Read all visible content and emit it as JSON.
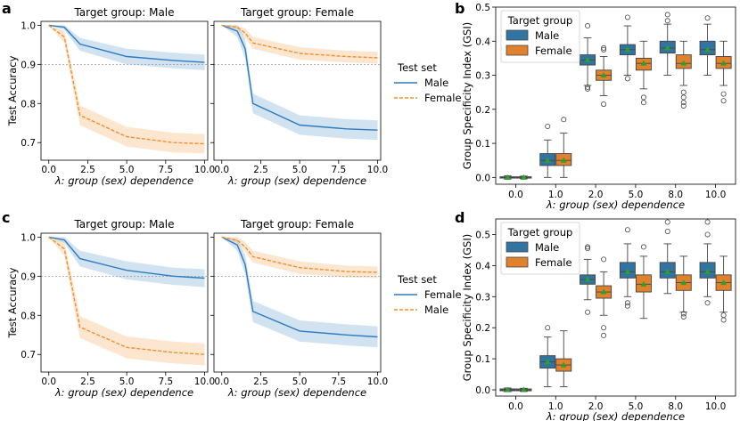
{
  "colors": {
    "male": "#2f7bbf",
    "female": "#f28e2b",
    "male_box": "#3274a1",
    "female_box": "#e1812c",
    "mean_marker": "#2ca02c",
    "grid": "#999999"
  },
  "panel_letters": [
    "a",
    "b",
    "c",
    "d"
  ],
  "chart_data": [
    {
      "id": "a-male",
      "type": "line",
      "panel": "a",
      "title": "Target group: Male",
      "ylabel": "Test Accuracy",
      "xlabel": "λ: group (sex) dependence",
      "xlim": [
        -0.5,
        10.2
      ],
      "ylim": [
        0.655,
        1.01
      ],
      "xticks": [
        0,
        2.5,
        5,
        7.5,
        10
      ],
      "xtick_labels": [
        "0.0",
        "2.5",
        "5.0",
        "7.5",
        "10.0"
      ],
      "yticks": [
        0.7,
        0.8,
        0.9,
        1.0
      ],
      "ytick_labels": [
        "0.7",
        "0.8",
        "0.9",
        "1.0"
      ],
      "hline": 0.9,
      "x": [
        0,
        1,
        2,
        5,
        8,
        10
      ],
      "series": [
        {
          "name": "Male",
          "style": "solid",
          "color": "male",
          "values": [
            1.0,
            0.995,
            0.952,
            0.92,
            0.91,
            0.905
          ],
          "lower": [
            1.0,
            0.988,
            0.935,
            0.9,
            0.89,
            0.885
          ],
          "upper": [
            1.0,
            1.0,
            0.968,
            0.94,
            0.93,
            0.925
          ]
        },
        {
          "name": "Female",
          "style": "dashed",
          "color": "female",
          "values": [
            1.0,
            0.97,
            0.77,
            0.715,
            0.7,
            0.697
          ],
          "lower": [
            1.0,
            0.955,
            0.745,
            0.69,
            0.675,
            0.672
          ],
          "upper": [
            1.0,
            0.985,
            0.795,
            0.74,
            0.725,
            0.722
          ]
        }
      ]
    },
    {
      "id": "a-female",
      "type": "line",
      "panel": "a",
      "title": "Target group: Female",
      "xlabel": "λ: group (sex) dependence",
      "xlim": [
        -0.5,
        10.2
      ],
      "ylim": [
        0.655,
        1.01
      ],
      "xticks": [
        0,
        2.5,
        5,
        7.5,
        10
      ],
      "xtick_labels": [
        "0.0",
        "2.5",
        "5.0",
        "7.5",
        "10.0"
      ],
      "yticks": [
        0.7,
        0.8,
        0.9,
        1.0
      ],
      "hline": 0.9,
      "x": [
        0,
        1,
        1.5,
        2,
        5,
        8,
        10
      ],
      "series": [
        {
          "name": "Male",
          "style": "solid",
          "color": "male",
          "values": [
            1.0,
            0.985,
            0.94,
            0.8,
            0.745,
            0.735,
            0.732
          ],
          "lower": [
            1.0,
            0.97,
            0.915,
            0.775,
            0.72,
            0.71,
            0.707
          ],
          "upper": [
            1.0,
            1.0,
            0.965,
            0.825,
            0.77,
            0.76,
            0.757
          ]
        },
        {
          "name": "Female",
          "style": "dashed",
          "color": "female",
          "values": [
            1.0,
            0.995,
            0.98,
            0.955,
            0.928,
            0.92,
            0.917
          ],
          "lower": [
            1.0,
            0.99,
            0.968,
            0.94,
            0.912,
            0.905,
            0.902
          ],
          "upper": [
            1.0,
            1.0,
            0.992,
            0.97,
            0.944,
            0.935,
            0.932
          ]
        }
      ],
      "legend": {
        "title": "Test set",
        "entries": [
          "Male",
          "Female"
        ],
        "placement": "right"
      }
    },
    {
      "id": "b",
      "type": "box",
      "panel": "b",
      "ylabel": "Group Specificity Index (GSI)",
      "xlabel": "λ: group (sex) dependence",
      "categories": [
        "0.0",
        "1.0",
        "2.0",
        "5.0",
        "8.0",
        "10.0"
      ],
      "ylim": [
        -0.02,
        0.5
      ],
      "yticks": [
        0.0,
        0.1,
        0.2,
        0.3,
        0.4,
        0.5
      ],
      "ytick_labels": [
        "0.0",
        "0.1",
        "0.2",
        "0.3",
        "0.4",
        "0.5"
      ],
      "legend": {
        "title": "Target group",
        "entries": [
          "Male",
          "Female"
        ],
        "placement": "top-left"
      },
      "groups": [
        {
          "name": "Male",
          "color": "male_box",
          "boxes": [
            {
              "min": -0.005,
              "q1": -0.002,
              "med": 0.0,
              "q3": 0.002,
              "max": 0.005,
              "mean": 0.0,
              "out": []
            },
            {
              "min": 0.0,
              "q1": 0.035,
              "med": 0.05,
              "q3": 0.07,
              "max": 0.11,
              "mean": 0.05,
              "out": [
                0.15
              ]
            },
            {
              "min": 0.27,
              "q1": 0.33,
              "med": 0.345,
              "q3": 0.36,
              "max": 0.41,
              "mean": 0.345,
              "out": [
                0.445,
                0.265,
                0.26
              ]
            },
            {
              "min": 0.3,
              "q1": 0.36,
              "med": 0.375,
              "q3": 0.39,
              "max": 0.445,
              "mean": 0.375,
              "out": [
                0.47,
                0.29
              ]
            },
            {
              "min": 0.3,
              "q1": 0.365,
              "med": 0.38,
              "q3": 0.4,
              "max": 0.45,
              "mean": 0.38,
              "out": [
                0.478,
                0.46
              ]
            },
            {
              "min": 0.3,
              "q1": 0.36,
              "med": 0.375,
              "q3": 0.4,
              "max": 0.45,
              "mean": 0.375,
              "out": [
                0.468
              ]
            }
          ]
        },
        {
          "name": "Female",
          "color": "female_box",
          "boxes": [
            {
              "min": -0.004,
              "q1": -0.002,
              "med": 0.0,
              "q3": 0.002,
              "max": 0.004,
              "mean": 0.0,
              "out": []
            },
            {
              "min": 0.0,
              "q1": 0.035,
              "med": 0.05,
              "q3": 0.07,
              "max": 0.13,
              "mean": 0.05,
              "out": [
                0.17
              ]
            },
            {
              "min": 0.24,
              "q1": 0.285,
              "med": 0.3,
              "q3": 0.315,
              "max": 0.355,
              "mean": 0.3,
              "out": [
                0.38,
                0.375,
                0.215
              ]
            },
            {
              "min": 0.26,
              "q1": 0.315,
              "med": 0.335,
              "q3": 0.35,
              "max": 0.4,
              "mean": 0.335,
              "out": [
                0.235,
                0.22
              ]
            },
            {
              "min": 0.27,
              "q1": 0.32,
              "med": 0.335,
              "q3": 0.36,
              "max": 0.4,
              "mean": 0.335,
              "out": [
                0.25,
                0.235,
                0.22,
                0.21
              ]
            },
            {
              "min": 0.27,
              "q1": 0.32,
              "med": 0.335,
              "q3": 0.355,
              "max": 0.4,
              "mean": 0.335,
              "out": [
                0.245,
                0.225
              ]
            }
          ]
        }
      ]
    },
    {
      "id": "c-male",
      "type": "line",
      "panel": "c",
      "title": "Target group: Male",
      "ylabel": "Test Accuracy",
      "xlabel": "λ: group (sex) dependence",
      "xlim": [
        -0.5,
        10.2
      ],
      "ylim": [
        0.655,
        1.01
      ],
      "xticks": [
        0,
        2.5,
        5,
        7.5,
        10
      ],
      "xtick_labels": [
        "0.0",
        "2.5",
        "5.0",
        "7.5",
        "10.0"
      ],
      "yticks": [
        0.7,
        0.8,
        0.9,
        1.0
      ],
      "ytick_labels": [
        "0.7",
        "0.8",
        "0.9",
        "1.0"
      ],
      "hline": 0.9,
      "x": [
        0,
        1,
        2,
        5,
        8,
        10
      ],
      "series": [
        {
          "name": "Female",
          "style": "solid",
          "color": "male",
          "values": [
            1.0,
            0.993,
            0.945,
            0.915,
            0.9,
            0.895
          ],
          "lower": [
            1.0,
            0.985,
            0.925,
            0.892,
            0.878,
            0.872
          ],
          "upper": [
            1.0,
            1.0,
            0.965,
            0.938,
            0.922,
            0.918
          ]
        },
        {
          "name": "Male",
          "style": "dashed",
          "color": "female",
          "values": [
            1.0,
            0.97,
            0.77,
            0.718,
            0.705,
            0.7
          ],
          "lower": [
            1.0,
            0.952,
            0.742,
            0.69,
            0.677,
            0.672
          ],
          "upper": [
            1.0,
            0.988,
            0.798,
            0.746,
            0.733,
            0.728
          ]
        }
      ]
    },
    {
      "id": "c-female",
      "type": "line",
      "panel": "c",
      "title": "Target group: Female",
      "xlabel": "λ: group (sex) dependence",
      "xlim": [
        -0.5,
        10.2
      ],
      "ylim": [
        0.655,
        1.01
      ],
      "xticks": [
        0,
        2.5,
        5,
        7.5,
        10
      ],
      "xtick_labels": [
        "0.0",
        "2.5",
        "5.0",
        "7.5",
        "10.0"
      ],
      "yticks": [
        0.7,
        0.8,
        0.9,
        1.0
      ],
      "hline": 0.9,
      "x": [
        0,
        1,
        1.5,
        2,
        5,
        8,
        10
      ],
      "series": [
        {
          "name": "Female",
          "style": "solid",
          "color": "male",
          "values": [
            1.0,
            0.98,
            0.93,
            0.81,
            0.76,
            0.75,
            0.745
          ],
          "lower": [
            1.0,
            0.965,
            0.905,
            0.783,
            0.733,
            0.723,
            0.718
          ],
          "upper": [
            1.0,
            0.995,
            0.955,
            0.837,
            0.787,
            0.777,
            0.772
          ]
        },
        {
          "name": "Male",
          "style": "dashed",
          "color": "female",
          "values": [
            1.0,
            0.992,
            0.975,
            0.95,
            0.922,
            0.912,
            0.91
          ],
          "lower": [
            1.0,
            0.985,
            0.962,
            0.935,
            0.906,
            0.897,
            0.895
          ],
          "upper": [
            1.0,
            1.0,
            0.988,
            0.965,
            0.938,
            0.927,
            0.925
          ]
        }
      ],
      "legend": {
        "title": "Test set",
        "entries": [
          "Female",
          "Male"
        ],
        "placement": "right"
      }
    },
    {
      "id": "d",
      "type": "box",
      "panel": "d",
      "ylabel": "Group Specificity Index (GSI)",
      "xlabel": "λ: group (sex) dependence",
      "categories": [
        "0.0",
        "1.0",
        "2.0",
        "5.0",
        "8.0",
        "10.0"
      ],
      "ylim": [
        -0.02,
        0.55
      ],
      "yticks": [
        0.0,
        0.1,
        0.2,
        0.3,
        0.4,
        0.5
      ],
      "ytick_labels": [
        "0.0",
        "0.1",
        "0.2",
        "0.3",
        "0.4",
        "0.5"
      ],
      "legend": {
        "title": "Target group",
        "entries": [
          "Male",
          "Female"
        ],
        "placement": "top-left"
      },
      "groups": [
        {
          "name": "Male",
          "color": "male_box",
          "boxes": [
            {
              "min": -0.006,
              "q1": -0.003,
              "med": 0.0,
              "q3": 0.003,
              "max": 0.006,
              "mean": 0.0,
              "out": []
            },
            {
              "min": 0.01,
              "q1": 0.07,
              "med": 0.09,
              "q3": 0.11,
              "max": 0.17,
              "mean": 0.09,
              "out": [
                0.2
              ]
            },
            {
              "min": 0.29,
              "q1": 0.34,
              "med": 0.355,
              "q3": 0.37,
              "max": 0.42,
              "mean": 0.355,
              "out": [
                0.46,
                0.455,
                0.25
              ]
            },
            {
              "min": 0.3,
              "q1": 0.36,
              "med": 0.38,
              "q3": 0.41,
              "max": 0.47,
              "mean": 0.38,
              "out": [
                0.515,
                0.28,
                0.27
              ]
            },
            {
              "min": 0.31,
              "q1": 0.36,
              "med": 0.38,
              "q3": 0.41,
              "max": 0.47,
              "mean": 0.38,
              "out": [
                0.54,
                0.51
              ]
            },
            {
              "min": 0.3,
              "q1": 0.36,
              "med": 0.38,
              "q3": 0.41,
              "max": 0.47,
              "mean": 0.38,
              "out": [
                0.54,
                0.5,
                0.28
              ]
            }
          ]
        },
        {
          "name": "Female",
          "color": "female_box",
          "boxes": [
            {
              "min": -0.005,
              "q1": -0.003,
              "med": 0.0,
              "q3": 0.003,
              "max": 0.005,
              "mean": 0.0,
              "out": []
            },
            {
              "min": 0.01,
              "q1": 0.06,
              "med": 0.08,
              "q3": 0.1,
              "max": 0.19,
              "mean": 0.08,
              "out": []
            },
            {
              "min": 0.24,
              "q1": 0.295,
              "med": 0.315,
              "q3": 0.335,
              "max": 0.38,
              "mean": 0.315,
              "out": [
                0.42,
                0.2,
                0.175
              ]
            },
            {
              "min": 0.23,
              "q1": 0.315,
              "med": 0.34,
              "q3": 0.37,
              "max": 0.43,
              "mean": 0.34,
              "out": [
                0.46
              ]
            },
            {
              "min": 0.25,
              "q1": 0.32,
              "med": 0.345,
              "q3": 0.37,
              "max": 0.43,
              "mean": 0.345,
              "out": [
                0.245,
                0.235
              ]
            },
            {
              "min": 0.25,
              "q1": 0.32,
              "med": 0.345,
              "q3": 0.37,
              "max": 0.43,
              "mean": 0.345,
              "out": [
                0.24,
                0.225
              ]
            }
          ]
        }
      ]
    }
  ]
}
